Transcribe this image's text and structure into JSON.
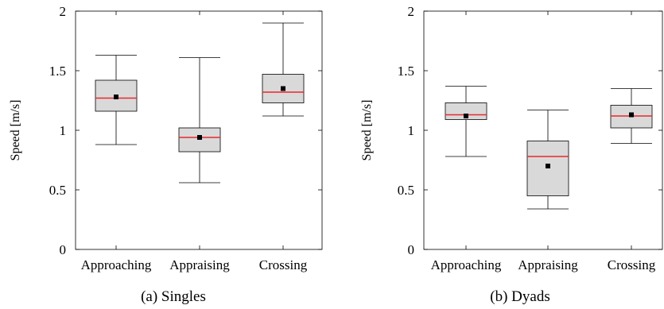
{
  "chart_data": [
    {
      "type": "box",
      "caption": "(a) Singles",
      "ylabel": "Speed [m/s]",
      "ylim": [
        0,
        2
      ],
      "yticks": [
        "0",
        "0.5",
        "1",
        "1.5",
        "2"
      ],
      "categories": [
        "Approaching",
        "Appraising",
        "Crossing"
      ],
      "boxes": [
        {
          "whisker_low": 0.88,
          "q1": 1.16,
          "median": 1.27,
          "q3": 1.42,
          "whisker_high": 1.63,
          "mean": 1.28
        },
        {
          "whisker_low": 0.56,
          "q1": 0.82,
          "median": 0.94,
          "q3": 1.02,
          "whisker_high": 1.61,
          "mean": 0.94
        },
        {
          "whisker_low": 1.12,
          "q1": 1.23,
          "median": 1.32,
          "q3": 1.47,
          "whisker_high": 1.9,
          "mean": 1.35
        }
      ],
      "colors": {
        "box_fill": "#d9d9d9",
        "median": "#e8292e",
        "mean": "#000000"
      }
    },
    {
      "type": "box",
      "caption": "(b) Dyads",
      "ylabel": "Speed [m/s]",
      "ylim": [
        0,
        2
      ],
      "yticks": [
        "0",
        "0.5",
        "1",
        "1.5",
        "2"
      ],
      "categories": [
        "Approaching",
        "Appraising",
        "Crossing"
      ],
      "boxes": [
        {
          "whisker_low": 0.78,
          "q1": 1.09,
          "median": 1.13,
          "q3": 1.23,
          "whisker_high": 1.37,
          "mean": 1.12
        },
        {
          "whisker_low": 0.34,
          "q1": 0.45,
          "median": 0.78,
          "q3": 0.91,
          "whisker_high": 1.17,
          "mean": 0.7
        },
        {
          "whisker_low": 0.89,
          "q1": 1.02,
          "median": 1.12,
          "q3": 1.21,
          "whisker_high": 1.35,
          "mean": 1.13
        }
      ],
      "colors": {
        "box_fill": "#d9d9d9",
        "median": "#e8292e",
        "mean": "#000000"
      }
    }
  ]
}
